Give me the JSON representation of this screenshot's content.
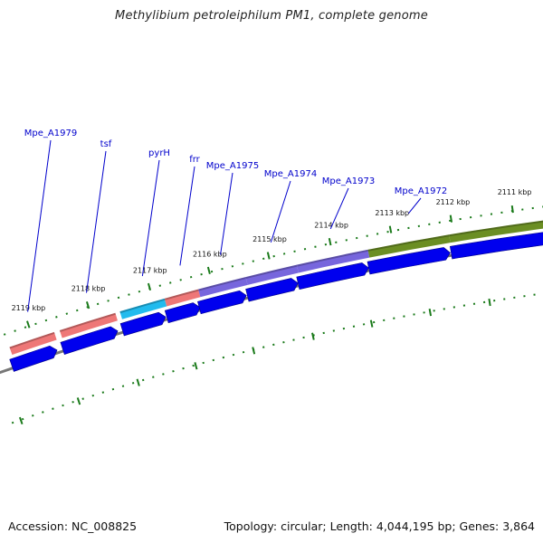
{
  "title": "Methylibium petroleiphilum PM1, complete genome",
  "footer": {
    "accession": "Accession: NC_008825",
    "summary": "Topology: circular; Length: 4,044,195 bp; Genes: 3,864"
  },
  "genes": [
    {
      "label": "Mpe_A1979"
    },
    {
      "label": "tsf"
    },
    {
      "label": "pyrH"
    },
    {
      "label": "frr"
    },
    {
      "label": "Mpe_A1975"
    },
    {
      "label": "Mpe_A1974"
    },
    {
      "label": "Mpe_A1973"
    },
    {
      "label": "Mpe_A1972"
    }
  ],
  "kbp_ticks": [
    {
      "label": "2119 kbp"
    },
    {
      "label": "2118 kbp"
    },
    {
      "label": "2117 kbp"
    },
    {
      "label": "2116 kbp"
    },
    {
      "label": "2115 kbp"
    },
    {
      "label": "2114 kbp"
    },
    {
      "label": "2113 kbp"
    },
    {
      "label": "2112 kbp"
    },
    {
      "label": "2111 kbp"
    }
  ],
  "colors": {
    "label_blue": "#0000cc",
    "arrow_blue": "#0000ee",
    "pink": "#ee7777",
    "cyan": "#22bbee",
    "purple": "#7766dd",
    "olive": "#6b8e23",
    "tick_green": "#1a7a1a",
    "backbone_gray": "#777777"
  }
}
